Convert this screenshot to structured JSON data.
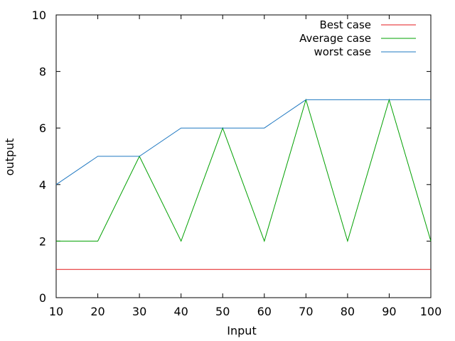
{
  "chart_data": {
    "type": "line",
    "title": "",
    "xlabel": "Input",
    "ylabel": "output",
    "xlim": [
      10,
      100
    ],
    "ylim": [
      0,
      10
    ],
    "xticks": [
      10,
      20,
      30,
      40,
      50,
      60,
      70,
      80,
      90,
      100
    ],
    "yticks": [
      0,
      2,
      4,
      6,
      8,
      10
    ],
    "grid": false,
    "legend_position": "top-right",
    "x": [
      10,
      20,
      30,
      40,
      50,
      60,
      70,
      80,
      90,
      100
    ],
    "series": [
      {
        "name": "Best case",
        "color": "#e41a1c",
        "values": [
          1,
          1,
          1,
          1,
          1,
          1,
          1,
          1,
          1,
          1
        ]
      },
      {
        "name": "Average case",
        "color": "#00a000",
        "values": [
          2,
          2,
          5,
          2,
          6,
          2,
          7,
          2,
          7,
          2
        ]
      },
      {
        "name": "worst case",
        "color": "#1f78c1",
        "values": [
          4,
          5,
          5,
          6,
          6,
          6,
          7,
          7,
          7,
          7
        ]
      }
    ]
  }
}
